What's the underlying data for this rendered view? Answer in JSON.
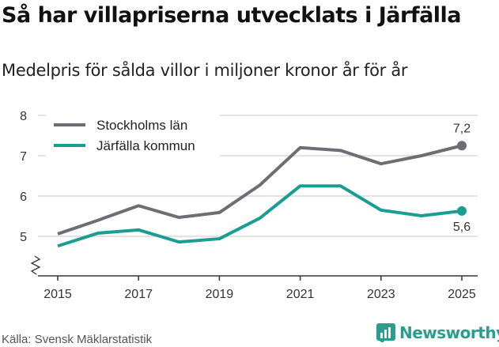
{
  "chart_data": {
    "type": "line",
    "title": "Så har villapriserna utvecklats i Järfälla",
    "subtitle": "Medelpris för sålda villor i miljoner kronor år för år",
    "x": [
      2015,
      2016,
      2017,
      2018,
      2019,
      2020,
      2021,
      2022,
      2023,
      2024,
      2025
    ],
    "x_ticks": [
      "2015",
      "2017",
      "2019",
      "2021",
      "2023",
      "2025"
    ],
    "y_ticks": [
      "5",
      "6",
      "7",
      "8"
    ],
    "ylim": [
      4,
      8
    ],
    "grid": true,
    "legend": "top-left",
    "series": [
      {
        "name": "Stockholms län",
        "color": "#6e6d73",
        "values": [
          5.06,
          5.4,
          5.76,
          5.47,
          5.59,
          6.27,
          7.2,
          7.13,
          6.8,
          7.0,
          7.25
        ],
        "end_label": "7,2"
      },
      {
        "name": "Järfälla kommun",
        "color": "#1a9e94",
        "values": [
          4.76,
          5.08,
          5.16,
          4.86,
          4.94,
          5.45,
          6.25,
          6.25,
          5.65,
          5.51,
          5.63
        ],
        "end_label": "5,6"
      }
    ]
  },
  "source": "Källa: Svensk Mäklarstatistik",
  "logo": "Newsworthy"
}
